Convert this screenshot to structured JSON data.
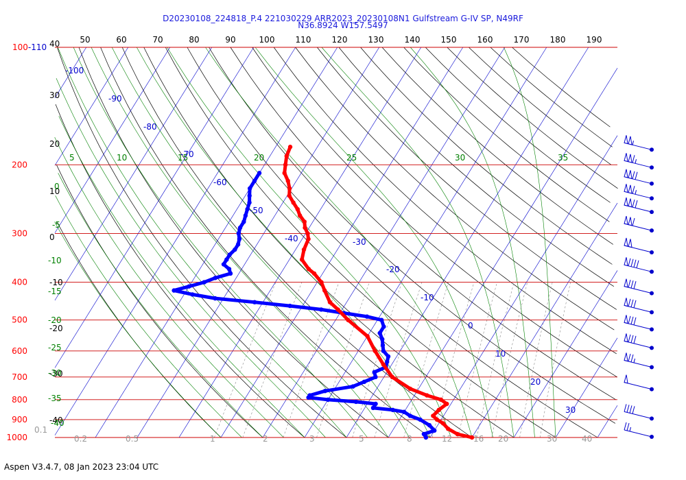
{
  "header": {
    "title_line1": "D20230108_224818_P.4 221030229 ARR2023_20230108N1 Gulfstream G-IV SP, N49RF",
    "title_line2": "N36.8924 W157.5497"
  },
  "footer": {
    "text": "Aspen V3.4.7, 08 Jan 2023  23:04 UTC"
  },
  "colors": {
    "temperature": "#ff0000",
    "dewpoint": "#0000ff",
    "isobar": "#cc0000",
    "isotherm": "#0000cc",
    "mixing_ratio": "#008000",
    "dry_adiabat": "#000000",
    "moist_adiabat": "#888888",
    "title": "#1a1adc"
  },
  "chart_data": {
    "type": "skew-t",
    "title": "D20230108_224818_P.4 221030229 ARR2023_20230108N1 Gulfstream G-IV SP, N49RF",
    "subtitle": "N36.8924 W157.5497",
    "pressure_levels_hpa": [
      1000,
      900,
      800,
      700,
      600,
      500,
      400,
      300,
      200,
      "100-110"
    ],
    "top_scale_ticks": [
      50,
      60,
      70,
      80,
      90,
      100,
      110,
      120,
      130,
      140,
      150,
      160,
      170,
      180,
      190
    ],
    "left_scale_labels": [
      "40",
      "30",
      "20",
      "10",
      "0",
      "-10",
      "-20",
      "-30",
      "-40"
    ],
    "isotherm_labels": [
      "-100",
      "-90",
      "-80",
      "-70",
      "-60",
      "-50",
      "-40",
      "-30",
      "-20",
      "-10",
      "0",
      "10",
      "20",
      "30"
    ],
    "adiabat_labels": [
      "5",
      "10",
      "15",
      "20",
      "25",
      "30",
      "35",
      "0",
      "-5",
      "-10",
      "-15",
      "-20",
      "-25",
      "-30",
      "-35",
      "-40"
    ],
    "mixing_ratio_labels": [
      "0.1",
      "0.2",
      "0.5",
      "1",
      "2",
      "3",
      "5",
      "8",
      "12",
      "16",
      "20",
      "30",
      "40"
    ],
    "temperature_profile": {
      "name": "Temperature",
      "pressure_hpa": [
        1000,
        980,
        950,
        920,
        900,
        880,
        850,
        820,
        800,
        780,
        750,
        700,
        650,
        600,
        550,
        500,
        470,
        450,
        420,
        400,
        380,
        370,
        350,
        330,
        310,
        300,
        290,
        280,
        270,
        260,
        250,
        240,
        230,
        220,
        210,
        200,
        190,
        180
      ],
      "temp_c": [
        20,
        16,
        13,
        11,
        9,
        7.5,
        8,
        9,
        7,
        3,
        -2,
        -8,
        -12,
        -16,
        -20,
        -27,
        -31,
        -34,
        -37,
        -39,
        -42,
        -44,
        -47,
        -48,
        -48.5,
        -49.5,
        -51,
        -52,
        -54,
        -55.5,
        -57.5,
        -59.5,
        -60.5,
        -62,
        -64,
        -65,
        -66,
        -66.5
      ]
    },
    "dewpoint_profile": {
      "name": "Dewpoint",
      "pressure_hpa": [
        1000,
        980,
        960,
        930,
        900,
        880,
        860,
        850,
        840,
        820,
        810,
        800,
        790,
        780,
        760,
        740,
        720,
        700,
        680,
        660,
        640,
        620,
        600,
        580,
        560,
        540,
        520,
        500,
        490,
        480,
        470,
        460,
        450,
        440,
        430,
        420,
        410,
        400,
        390,
        380,
        370,
        360,
        350,
        340,
        330,
        320,
        310,
        300,
        290,
        280,
        270,
        260,
        250,
        240,
        230,
        220,
        210
      ],
      "dewpoint_c": [
        9,
        8,
        10,
        8,
        5,
        2,
        0,
        -3,
        -8,
        -8,
        -13,
        -20,
        -25,
        -25,
        -22,
        -16,
        -14,
        -12,
        -13,
        -11,
        -11.5,
        -12,
        -14,
        -15,
        -16,
        -17.5,
        -17.5,
        -19,
        -23,
        -29,
        -35,
        -43,
        -52,
        -62,
        -68,
        -73,
        -70,
        -67,
        -65,
        -62,
        -63,
        -65,
        -65,
        -65,
        -64.5,
        -64.5,
        -65,
        -66,
        -66.5,
        -66.5,
        -67,
        -67.5,
        -68,
        -69,
        -70,
        -70,
        -70
      ]
    },
    "wind_barbs": {
      "pressure_hpa": [
        180,
        200,
        220,
        240,
        260,
        290,
        330,
        370,
        420,
        470,
        520,
        580,
        650,
        740,
        880,
        980
      ],
      "speed_kt": [
        105,
        115,
        120,
        115,
        120,
        110,
        100,
        90,
        80,
        80,
        80,
        80,
        75,
        50,
        40,
        25
      ]
    }
  }
}
